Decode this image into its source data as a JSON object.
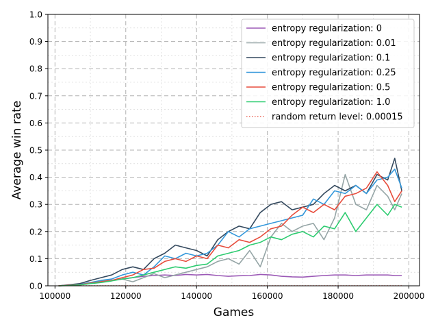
{
  "chart_data": {
    "type": "line",
    "xlabel": "Games",
    "ylabel": "Average win rate",
    "xlim": [
      98000,
      203000
    ],
    "ylim": [
      0,
      1
    ],
    "x_ticks": [
      100000,
      120000,
      140000,
      160000,
      180000,
      200000
    ],
    "x_tick_labels": [
      "100000",
      "120000",
      "140000",
      "160000",
      "180000",
      "200000"
    ],
    "y_ticks": [
      0.0,
      0.1,
      0.2,
      0.3,
      0.4,
      0.5,
      0.6,
      0.7,
      0.8,
      0.9,
      1.0
    ],
    "y_tick_labels": [
      "0.0",
      "0.1",
      "0.2",
      "0.3",
      "0.4",
      "0.5",
      "0.6",
      "0.7",
      "0.8",
      "0.9",
      "1.0"
    ],
    "grid": true,
    "legend_position": "top-right",
    "x": [
      101000,
      104000,
      107000,
      110000,
      113000,
      116000,
      119000,
      122000,
      125000,
      128000,
      131000,
      134000,
      137000,
      140000,
      143000,
      146000,
      149000,
      152000,
      155000,
      158000,
      161000,
      164000,
      167000,
      170000,
      173000,
      176000,
      179000,
      182000,
      185000,
      188000,
      191000,
      194000,
      196000,
      198000
    ],
    "series": [
      {
        "name": "entropy regularization:  0",
        "color": "#9b59b6",
        "style": "solid",
        "values": [
          0.0,
          0.002,
          0.005,
          0.01,
          0.015,
          0.02,
          0.025,
          0.03,
          0.035,
          0.038,
          0.04,
          0.038,
          0.042,
          0.04,
          0.042,
          0.038,
          0.035,
          0.037,
          0.038,
          0.042,
          0.04,
          0.035,
          0.033,
          0.032,
          0.035,
          0.038,
          0.04,
          0.04,
          0.038,
          0.04,
          0.04,
          0.04,
          0.038,
          0.038
        ]
      },
      {
        "name": "entropy regularization:  0.01",
        "color": "#95a5a6",
        "style": "solid",
        "values": [
          0.0,
          0.003,
          0.006,
          0.012,
          0.018,
          0.02,
          0.025,
          0.015,
          0.03,
          0.045,
          0.03,
          0.04,
          0.05,
          0.06,
          0.07,
          0.09,
          0.1,
          0.08,
          0.13,
          0.07,
          0.18,
          0.23,
          0.2,
          0.22,
          0.23,
          0.17,
          0.25,
          0.41,
          0.3,
          0.28,
          0.37,
          0.33,
          0.28,
          0.34
        ]
      },
      {
        "name": "entropy regularization:  0.1",
        "color": "#34495e",
        "style": "solid",
        "values": [
          0.0,
          0.004,
          0.008,
          0.02,
          0.03,
          0.04,
          0.06,
          0.07,
          0.06,
          0.1,
          0.12,
          0.15,
          0.14,
          0.13,
          0.11,
          0.17,
          0.2,
          0.22,
          0.21,
          0.27,
          0.3,
          0.31,
          0.28,
          0.29,
          0.3,
          0.34,
          0.37,
          0.35,
          0.37,
          0.34,
          0.41,
          0.39,
          0.47,
          0.35
        ]
      },
      {
        "name": "entropy regularization:  0.25",
        "color": "#3498db",
        "style": "solid",
        "values": [
          0.0,
          0.002,
          0.005,
          0.012,
          0.02,
          0.025,
          0.04,
          0.05,
          0.04,
          0.07,
          0.11,
          0.1,
          0.12,
          0.11,
          0.12,
          0.15,
          0.2,
          0.18,
          0.21,
          0.22,
          0.23,
          0.24,
          0.25,
          0.26,
          0.32,
          0.3,
          0.35,
          0.34,
          0.37,
          0.34,
          0.39,
          0.4,
          0.43,
          0.36
        ]
      },
      {
        "name": "entropy regularization:  0.5",
        "color": "#e74c3c",
        "style": "solid",
        "values": [
          0.0,
          0.002,
          0.004,
          0.01,
          0.015,
          0.02,
          0.03,
          0.04,
          0.06,
          0.065,
          0.09,
          0.1,
          0.09,
          0.11,
          0.1,
          0.15,
          0.14,
          0.17,
          0.16,
          0.18,
          0.21,
          0.22,
          0.26,
          0.29,
          0.27,
          0.3,
          0.28,
          0.33,
          0.34,
          0.36,
          0.42,
          0.37,
          0.31,
          0.35
        ]
      },
      {
        "name": "entropy regularization:  1.0",
        "color": "#2ecc71",
        "style": "solid",
        "values": [
          0.0,
          0.001,
          0.003,
          0.008,
          0.012,
          0.018,
          0.025,
          0.03,
          0.04,
          0.05,
          0.06,
          0.07,
          0.065,
          0.075,
          0.08,
          0.11,
          0.12,
          0.13,
          0.15,
          0.16,
          0.18,
          0.17,
          0.19,
          0.2,
          0.18,
          0.22,
          0.21,
          0.27,
          0.2,
          0.25,
          0.3,
          0.26,
          0.3,
          0.29
        ]
      },
      {
        "name": "random return level: 0.00015",
        "color": "#e74c3c",
        "style": "dotted",
        "constant": 0.00015
      }
    ]
  }
}
